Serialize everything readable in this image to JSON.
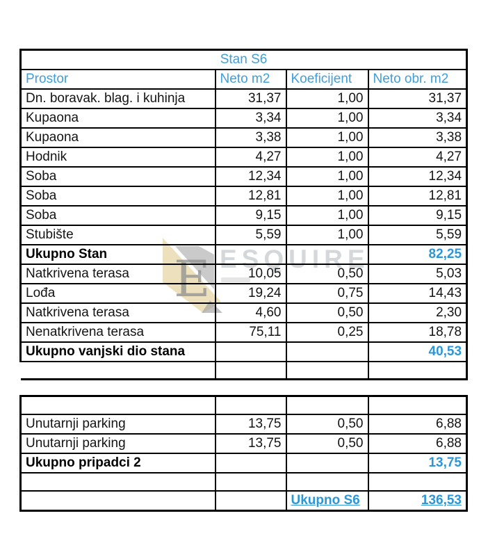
{
  "page_title": "Stan S6",
  "colors": {
    "accent_blue": "#3E9FDB",
    "total_blue": "#2C96D6",
    "text_black": "#141414",
    "border_black": "#000000",
    "watermark_beige": "#E9D9AD",
    "watermark_gray": "#9F9F9F"
  },
  "table_main": {
    "title": "Stan S6",
    "headers": [
      "Prostor",
      "Neto m2",
      "Koeficijent",
      "Neto obr. m2"
    ],
    "rows": [
      {
        "name": "Dn. boravak. blag. i kuhinja",
        "neto": "31,37",
        "koef": "1,00",
        "obr": "31,37",
        "style": "normal"
      },
      {
        "name": "Kupaona",
        "neto": "3,34",
        "koef": "1,00",
        "obr": "3,34",
        "style": "normal"
      },
      {
        "name": "Kupaona",
        "neto": "3,38",
        "koef": "1,00",
        "obr": "3,38",
        "style": "normal"
      },
      {
        "name": "Hodnik",
        "neto": "4,27",
        "koef": "1,00",
        "obr": "4,27",
        "style": "normal"
      },
      {
        "name": "Soba",
        "neto": "12,34",
        "koef": "1,00",
        "obr": "12,34",
        "style": "normal"
      },
      {
        "name": "Soba",
        "neto": "12,81",
        "koef": "1,00",
        "obr": "12,81",
        "style": "normal"
      },
      {
        "name": "Soba",
        "neto": "9,15",
        "koef": "1,00",
        "obr": "9,15",
        "style": "normal"
      },
      {
        "name": "Stubište",
        "neto": "5,59",
        "koef": "1,00",
        "obr": "5,59",
        "style": "normal"
      },
      {
        "name": "Ukupno Stan",
        "neto": "",
        "koef": "",
        "obr": "82,25",
        "style": "total"
      },
      {
        "name": "Natkrivena terasa",
        "neto": "10,05",
        "koef": "0,50",
        "obr": "5,03",
        "style": "normal"
      },
      {
        "name": "Lođa",
        "neto": "19,24",
        "koef": "0,75",
        "obr": "14,43",
        "style": "normal"
      },
      {
        "name": "Natkrivena terasa",
        "neto": "4,60",
        "koef": "0,50",
        "obr": "2,30",
        "style": "normal"
      },
      {
        "name": "Nenatkrivena terasa",
        "neto": "75,11",
        "koef": "0,25",
        "obr": "18,78",
        "style": "normal"
      },
      {
        "name": "Ukupno vanjski dio stana",
        "neto": "",
        "koef": "",
        "obr": "40,53",
        "style": "total"
      },
      {
        "name": "",
        "neto": "",
        "koef": "",
        "obr": "",
        "style": "noleft"
      }
    ]
  },
  "table_annex": {
    "rows": [
      {
        "name": "",
        "neto": "",
        "koef": "",
        "obr": "",
        "style": "empty"
      },
      {
        "name": "Unutarnji parking",
        "neto": "13,75",
        "koef": "0,50",
        "obr": "6,88",
        "style": "normal"
      },
      {
        "name": "Unutarnji parking",
        "neto": "13,75",
        "koef": "0,50",
        "obr": "6,88",
        "style": "normal"
      },
      {
        "name": "Ukupno pripadci 2",
        "neto": "",
        "koef": "",
        "obr": "13,75",
        "style": "total"
      },
      {
        "name": "",
        "neto": "",
        "koef": "",
        "obr": "",
        "style": "empty"
      },
      {
        "name": "",
        "neto": "",
        "koef": "Ukupno S6",
        "obr": "136,53",
        "style": "grand"
      }
    ]
  },
  "watermark": {
    "logo_letter": "E",
    "brand": "ESQUIRE"
  }
}
